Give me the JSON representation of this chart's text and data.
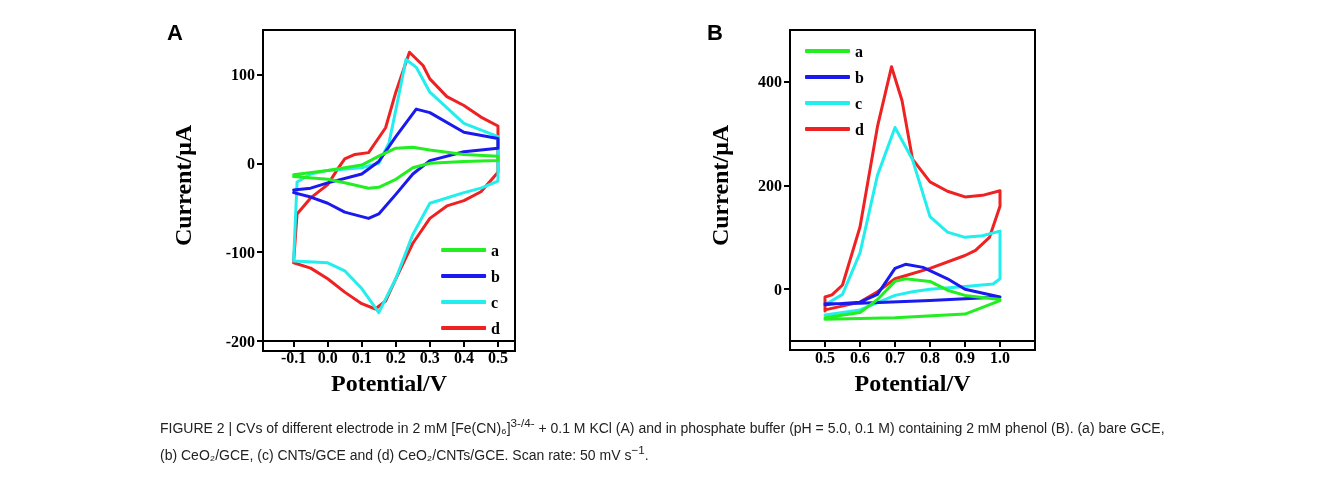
{
  "chart_data": [
    {
      "type": "line",
      "title": "A",
      "xlabel": "Potential/V",
      "ylabel": "Current/μA",
      "xlim": [
        -0.19,
        0.55
      ],
      "ylim": [
        -200,
        150
      ],
      "xticks": [
        -0.1,
        {
          "value": 0,
          "label": "0.0"
        },
        0.1,
        0.2,
        0.3,
        0.4,
        0.5
      ],
      "yticks": [
        -200,
        -100,
        0,
        100
      ],
      "grid": false,
      "legend": "bottom right",
      "marker": "none",
      "line_style": "solid",
      "annotations": [
        "FIGURE 2 | CVs of different electrode in 2 mM [Fe(CN)₆]$^{3-/4-}$ + 0.1 M KCl (A) and in phosphate buffer (pH = 5.0, 0.1 M) containing 2 mM phenol (B). (a) bare GCE, (b) CeO₂/GCE, (c) CNTs/GCE and (d) CeO₂/CNTs/GCE. Scan rate: 50 mV s$^{−1}$."
      ],
      "series": [
        {
          "name": "a",
          "color": "#22ee22",
          "x": [
            -0.1,
            0,
            0.1,
            0.15,
            0.2,
            0.25,
            0.3,
            0.4,
            0.5,
            0.5,
            0.4,
            0.3,
            0.25,
            0.2,
            0.15,
            0.12,
            0.05,
            0,
            -0.1
          ],
          "values": [
            -13,
            -8,
            -2,
            8,
            17,
            18,
            15,
            10,
            8,
            3,
            2,
            0,
            -5,
            -18,
            -27,
            -28,
            -22,
            -18,
            -15
          ]
        },
        {
          "name": "b",
          "color": "#1a1aee",
          "x": [
            -0.1,
            -0.05,
            0,
            0.1,
            0.15,
            0.2,
            0.26,
            0.3,
            0.4,
            0.5,
            0.5,
            0.4,
            0.3,
            0.25,
            0.2,
            0.15,
            0.12,
            0.05,
            0,
            -0.05,
            -0.1
          ],
          "values": [
            -30,
            -28,
            -22,
            -12,
            2,
            30,
            61,
            57,
            35,
            28,
            17,
            13,
            3,
            -12,
            -35,
            -57,
            -62,
            -55,
            -45,
            -38,
            -33
          ]
        },
        {
          "name": "c",
          "color": "#22eeee",
          "x": [
            -0.1,
            -0.09,
            -0.05,
            0,
            0.1,
            0.15,
            0.18,
            0.2,
            0.23,
            0.26,
            0.3,
            0.4,
            0.5,
            0.5,
            0.45,
            0.4,
            0.3,
            0.25,
            0.2,
            0.15,
            0.1,
            0.05,
            0,
            -0.1
          ],
          "values": [
            -108,
            -21,
            -12,
            -8,
            -5,
            0,
            23,
            60,
            117,
            108,
            80,
            45,
            30,
            -20,
            -28,
            -33,
            -45,
            -80,
            -130,
            -168,
            -141,
            -121,
            -112,
            -110
          ]
        },
        {
          "name": "d",
          "color": "#ee2222",
          "x": [
            -0.1,
            -0.09,
            -0.05,
            0,
            0.03,
            0.05,
            0.08,
            0.12,
            0.17,
            0.2,
            0.24,
            0.28,
            0.3,
            0.35,
            0.4,
            0.45,
            0.5,
            0.5,
            0.45,
            0.4,
            0.35,
            0.3,
            0.25,
            0.2,
            0.17,
            0.14,
            0.1,
            0.05,
            0,
            -0.05,
            -0.1
          ],
          "values": [
            -110,
            -57,
            -39,
            -24,
            -6,
            5,
            10,
            12,
            40,
            80,
            125,
            110,
            95,
            75,
            65,
            52,
            42,
            -10,
            -32,
            -42,
            -48,
            -62,
            -90,
            -130,
            -155,
            -164,
            -158,
            -145,
            -130,
            -118,
            -112
          ]
        }
      ]
    },
    {
      "type": "line",
      "title": "B",
      "xlabel": "Potential/V",
      "ylabel": "Current/μA",
      "xlim": [
        0.4,
        1.1
      ],
      "ylim": [
        -100,
        500
      ],
      "xticks": [
        0.5,
        0.6,
        0.7,
        0.8,
        0.9,
        {
          "value": 1,
          "label": "1.0"
        }
      ],
      "yticks": [
        0,
        200,
        400
      ],
      "grid": false,
      "legend": "top left",
      "marker": "none",
      "line_style": "solid",
      "series": [
        {
          "name": "a",
          "color": "#22ee22",
          "x": [
            0.5,
            0.6,
            0.65,
            0.7,
            0.73,
            0.8,
            0.85,
            0.9,
            1,
            1,
            0.9,
            0.7,
            0.5
          ],
          "values": [
            -55,
            -45,
            -20,
            15,
            20,
            15,
            -2,
            -12,
            -20,
            -22,
            -48,
            -55,
            -58
          ]
        },
        {
          "name": "b",
          "color": "#1a1aee",
          "x": [
            0.5,
            0.6,
            0.65,
            0.7,
            0.73,
            0.78,
            0.85,
            0.9,
            1,
            1,
            0.8,
            0.6,
            0.5
          ],
          "values": [
            -30,
            -25,
            -10,
            40,
            48,
            42,
            20,
            0,
            -15,
            -15,
            -22,
            -27,
            -28
          ]
        },
        {
          "name": "c",
          "color": "#22eeee",
          "x": [
            0.5,
            0.55,
            0.6,
            0.65,
            0.7,
            0.75,
            0.8,
            0.85,
            0.9,
            0.95,
            1,
            1,
            0.98,
            0.9,
            0.8,
            0.75,
            0.7,
            0.6,
            0.5
          ],
          "values": [
            -30,
            -10,
            70,
            220,
            312,
            250,
            140,
            110,
            100,
            103,
            112,
            20,
            10,
            5,
            0,
            -5,
            -12,
            -40,
            -50
          ]
        },
        {
          "name": "d",
          "color": "#ee2222",
          "x": [
            0.5,
            0.5,
            0.52,
            0.55,
            0.6,
            0.65,
            0.69,
            0.72,
            0.75,
            0.8,
            0.85,
            0.9,
            0.95,
            1,
            1,
            0.97,
            0.93,
            0.9,
            0.8,
            0.7,
            0.65,
            0.6,
            0.5
          ],
          "values": [
            -42,
            -15,
            -11,
            8,
            120,
            314,
            429,
            364,
            251,
            207,
            189,
            178,
            181,
            190,
            160,
            100,
            75,
            65,
            40,
            20,
            -5,
            -25,
            -40
          ]
        }
      ]
    }
  ]
}
